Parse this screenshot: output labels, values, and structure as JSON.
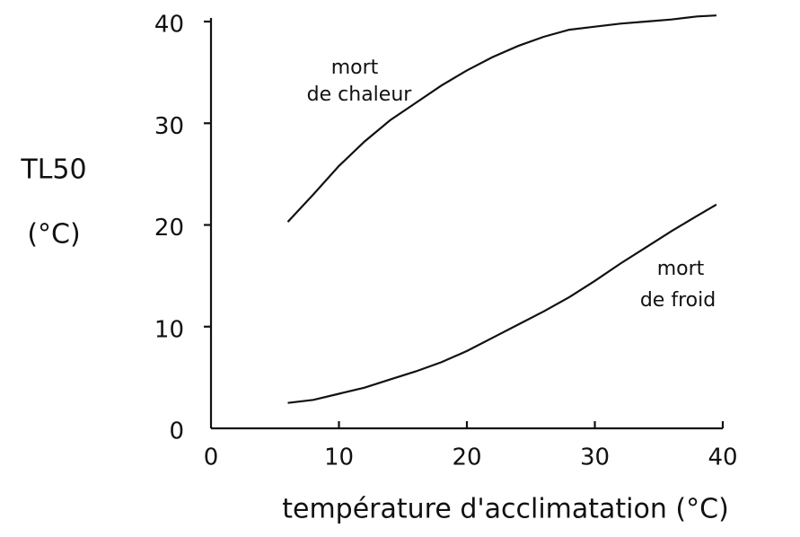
{
  "chart_data": {
    "type": "line",
    "ylabel": [
      "TL50",
      "(°C)"
    ],
    "xlabel": "température d'acclimatation (°C)",
    "xlim": [
      0,
      40
    ],
    "ylim": [
      0,
      40
    ],
    "xticks": [
      0,
      10,
      20,
      30,
      40
    ],
    "yticks": [
      0,
      10,
      20,
      30,
      40
    ],
    "series": [
      {
        "name": "mort de chaleur",
        "color": "#111111",
        "x": [
          6,
          8,
          10,
          12,
          14,
          16,
          18,
          20,
          22,
          24,
          26,
          28,
          30,
          32,
          34,
          36,
          38,
          39.5
        ],
        "values": [
          20.3,
          23,
          25.8,
          28.2,
          30.3,
          32,
          33.7,
          35.2,
          36.5,
          37.6,
          38.5,
          39.2,
          39.5,
          39.8,
          40,
          40.2,
          40.5,
          40.6
        ]
      },
      {
        "name": "mort de froid",
        "color": "#111111",
        "x": [
          6,
          8,
          10,
          12,
          14,
          16,
          18,
          20,
          22,
          24,
          26,
          28,
          30,
          32,
          34,
          36,
          38,
          39.5
        ],
        "values": [
          2.5,
          2.8,
          3.4,
          4,
          4.8,
          5.6,
          6.5,
          7.6,
          8.9,
          10.2,
          11.5,
          12.9,
          14.5,
          16.2,
          17.8,
          19.4,
          20.9,
          22
        ]
      }
    ],
    "annotations": [
      {
        "lines": [
          "mort",
          "de chaleur"
        ]
      },
      {
        "lines": [
          "mort",
          "de froid"
        ]
      }
    ]
  }
}
